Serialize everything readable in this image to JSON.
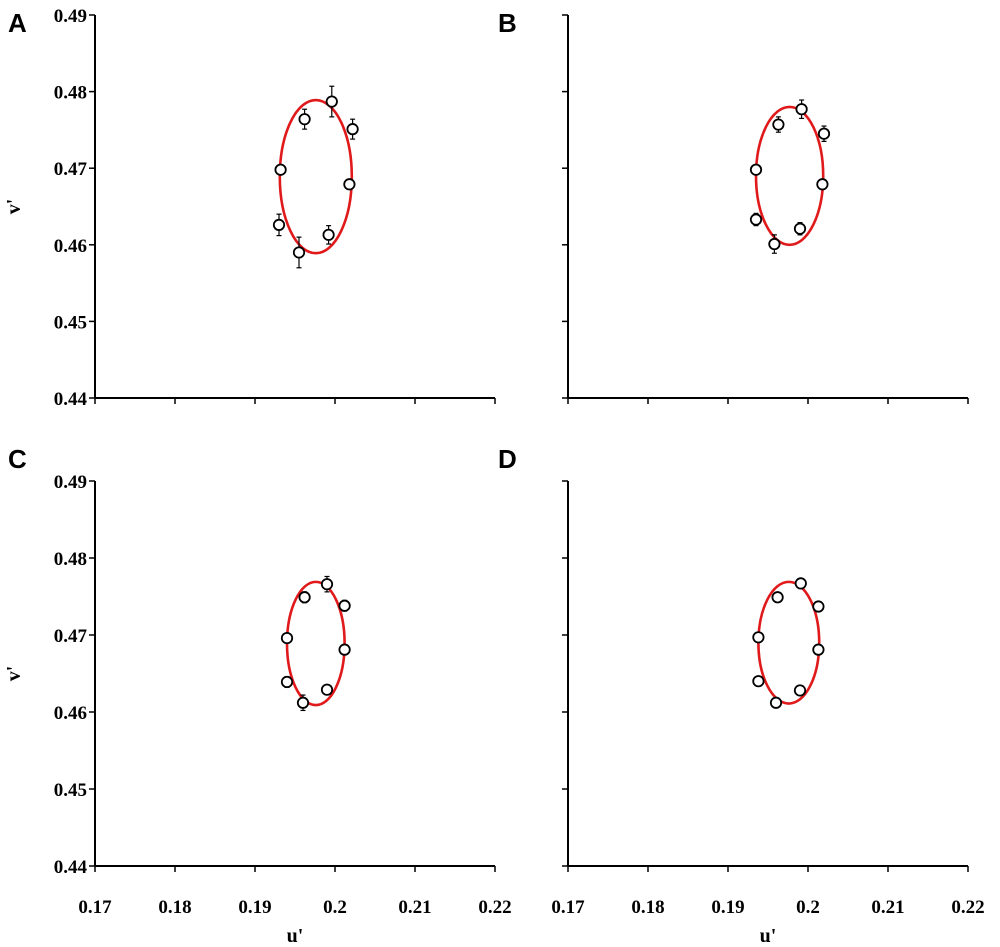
{
  "figure": {
    "axis_color": "#000000",
    "ellipse_color": "#e0191b",
    "marker_fill": "#ffffff"
  },
  "chart_data": [
    {
      "type": "scatter",
      "panel": "A",
      "xlabel": "",
      "ylabel": "v'",
      "xlim": [
        0.17,
        0.22
      ],
      "ylim": [
        0.44,
        0.49
      ],
      "xticks": [
        "0.17",
        "0.18",
        "0.19",
        "0.2",
        "0.21",
        "0.22"
      ],
      "xtick_labels_shown": false,
      "yticks": [
        "0.44",
        "0.45",
        "0.46",
        "0.47",
        "0.48",
        "0.49"
      ],
      "ytick_labels_shown": true,
      "points": [
        {
          "x": 0.1932,
          "y": 0.4698,
          "err": 0.0
        },
        {
          "x": 0.1962,
          "y": 0.4764,
          "err": 0.0013
        },
        {
          "x": 0.1996,
          "y": 0.4787,
          "err": 0.002
        },
        {
          "x": 0.2022,
          "y": 0.4751,
          "err": 0.0013
        },
        {
          "x": 0.2018,
          "y": 0.4679,
          "err": 0.0
        },
        {
          "x": 0.1992,
          "y": 0.4613,
          "err": 0.0012
        },
        {
          "x": 0.1955,
          "y": 0.459,
          "err": 0.002
        },
        {
          "x": 0.193,
          "y": 0.4626,
          "err": 0.0014
        }
      ],
      "ellipse": {
        "cx": 0.1976,
        "cy": 0.4689,
        "rx": 0.0045,
        "ry": 0.01
      }
    },
    {
      "type": "scatter",
      "panel": "B",
      "xlabel": "",
      "ylabel": "",
      "xlim": [
        0.17,
        0.22
      ],
      "ylim": [
        0.44,
        0.49
      ],
      "xticks": [
        "0.17",
        "0.18",
        "0.19",
        "0.2",
        "0.21",
        "0.22"
      ],
      "xtick_labels_shown": false,
      "yticks": [
        "0.44",
        "0.45",
        "0.46",
        "0.47",
        "0.48",
        "0.49"
      ],
      "ytick_labels_shown": false,
      "points": [
        {
          "x": 0.1935,
          "y": 0.4698,
          "err": 0.0
        },
        {
          "x": 0.1963,
          "y": 0.4757,
          "err": 0.001
        },
        {
          "x": 0.1992,
          "y": 0.4777,
          "err": 0.0012
        },
        {
          "x": 0.202,
          "y": 0.4745,
          "err": 0.001
        },
        {
          "x": 0.2018,
          "y": 0.4679,
          "err": 0.0
        },
        {
          "x": 0.199,
          "y": 0.4621,
          "err": 0.0008
        },
        {
          "x": 0.1958,
          "y": 0.4601,
          "err": 0.0012
        },
        {
          "x": 0.1935,
          "y": 0.4633,
          "err": 0.0008
        }
      ],
      "ellipse": {
        "cx": 0.1977,
        "cy": 0.469,
        "rx": 0.0042,
        "ry": 0.009
      }
    },
    {
      "type": "scatter",
      "panel": "C",
      "xlabel": "u'",
      "ylabel": "v'",
      "xlim": [
        0.17,
        0.22
      ],
      "ylim": [
        0.44,
        0.49
      ],
      "xticks": [
        "0.17",
        "0.18",
        "0.19",
        "0.2",
        "0.21",
        "0.22"
      ],
      "xtick_labels_shown": true,
      "yticks": [
        "0.44",
        "0.45",
        "0.46",
        "0.47",
        "0.48",
        "0.49"
      ],
      "ytick_labels_shown": true,
      "points": [
        {
          "x": 0.194,
          "y": 0.4696,
          "err": 0.0
        },
        {
          "x": 0.1962,
          "y": 0.4749,
          "err": 0.0007
        },
        {
          "x": 0.199,
          "y": 0.4766,
          "err": 0.001
        },
        {
          "x": 0.2012,
          "y": 0.4738,
          "err": 0.0007
        },
        {
          "x": 0.2012,
          "y": 0.4681,
          "err": 0.0
        },
        {
          "x": 0.199,
          "y": 0.4629,
          "err": 0.0006
        },
        {
          "x": 0.196,
          "y": 0.4612,
          "err": 0.001
        },
        {
          "x": 0.194,
          "y": 0.4639,
          "err": 0.0007
        }
      ],
      "ellipse": {
        "cx": 0.1976,
        "cy": 0.4689,
        "rx": 0.0036,
        "ry": 0.008
      }
    },
    {
      "type": "scatter",
      "panel": "D",
      "xlabel": "u'",
      "ylabel": "",
      "xlim": [
        0.17,
        0.22
      ],
      "ylim": [
        0.44,
        0.49
      ],
      "xticks": [
        "0.17",
        "0.18",
        "0.19",
        "0.2",
        "0.21",
        "0.22"
      ],
      "xtick_labels_shown": true,
      "yticks": [
        "0.44",
        "0.45",
        "0.46",
        "0.47",
        "0.48",
        "0.49"
      ],
      "ytick_labels_shown": false,
      "points": [
        {
          "x": 0.1938,
          "y": 0.4697,
          "err": 0.0
        },
        {
          "x": 0.1962,
          "y": 0.4749,
          "err": 0.0
        },
        {
          "x": 0.1991,
          "y": 0.4767,
          "err": 0.0
        },
        {
          "x": 0.2013,
          "y": 0.4737,
          "err": 0.0
        },
        {
          "x": 0.2013,
          "y": 0.4681,
          "err": 0.0
        },
        {
          "x": 0.199,
          "y": 0.4628,
          "err": 0.0
        },
        {
          "x": 0.196,
          "y": 0.4612,
          "err": 0.0
        },
        {
          "x": 0.1938,
          "y": 0.464,
          "err": 0.0
        }
      ],
      "ellipse": {
        "cx": 0.1976,
        "cy": 0.469,
        "rx": 0.0038,
        "ry": 0.0079
      }
    }
  ]
}
